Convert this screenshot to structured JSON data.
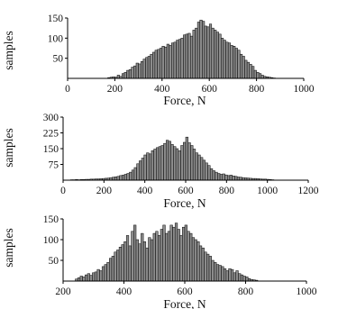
{
  "colors": {
    "bar_fill": "#8c8c8c",
    "bar_edge": "#000000",
    "axis": "#000000",
    "background": "#ffffff"
  },
  "chart_data": [
    {
      "type": "bar",
      "title": "",
      "xlabel": "Force, N",
      "ylabel": "samples",
      "xlim": [
        0,
        1000
      ],
      "ylim": [
        0,
        150
      ],
      "xticks": [
        0,
        200,
        400,
        600,
        800,
        1000
      ],
      "yticks": [
        50,
        100,
        150
      ],
      "grid": false,
      "bin_width": 10,
      "x": [
        170,
        180,
        190,
        200,
        210,
        220,
        230,
        240,
        250,
        260,
        270,
        280,
        290,
        300,
        310,
        320,
        330,
        340,
        350,
        360,
        370,
        380,
        390,
        400,
        410,
        420,
        430,
        440,
        450,
        460,
        470,
        480,
        490,
        500,
        510,
        520,
        530,
        540,
        550,
        560,
        570,
        580,
        590,
        600,
        610,
        620,
        630,
        640,
        650,
        660,
        670,
        680,
        690,
        700,
        710,
        720,
        730,
        740,
        750,
        760,
        770,
        780,
        790,
        800,
        810,
        820,
        830,
        840,
        850,
        860,
        870
      ],
      "values": [
        2,
        3,
        4,
        3,
        8,
        5,
        12,
        15,
        20,
        22,
        28,
        31,
        38,
        36,
        42,
        48,
        52,
        55,
        60,
        65,
        70,
        72,
        75,
        80,
        78,
        85,
        82,
        88,
        90,
        95,
        97,
        100,
        108,
        110,
        112,
        105,
        120,
        125,
        140,
        145,
        142,
        130,
        128,
        135,
        125,
        120,
        115,
        110,
        100,
        95,
        90,
        88,
        82,
        80,
        75,
        70,
        60,
        55,
        45,
        40,
        35,
        30,
        20,
        15,
        12,
        8,
        5,
        4,
        3,
        2,
        1
      ]
    },
    {
      "type": "bar",
      "title": "",
      "xlabel": "Force, N",
      "ylabel": "samples",
      "xlim": [
        0,
        1200
      ],
      "ylim": [
        0,
        300
      ],
      "xticks": [
        0,
        200,
        400,
        600,
        800,
        1000,
        1200
      ],
      "yticks": [
        75,
        150,
        225,
        300
      ],
      "grid": false,
      "bin_width": 12,
      "x": [
        36,
        48,
        60,
        72,
        84,
        96,
        108,
        120,
        132,
        144,
        156,
        168,
        180,
        192,
        204,
        216,
        228,
        240,
        252,
        264,
        276,
        288,
        300,
        312,
        324,
        336,
        348,
        360,
        372,
        384,
        396,
        408,
        420,
        432,
        444,
        456,
        468,
        480,
        492,
        504,
        516,
        528,
        540,
        552,
        564,
        576,
        588,
        600,
        612,
        624,
        636,
        648,
        660,
        672,
        684,
        696,
        708,
        720,
        732,
        744,
        756,
        768,
        780,
        792,
        804,
        816,
        828,
        840,
        852,
        864,
        876,
        888,
        900,
        912,
        924,
        936,
        948,
        960,
        972,
        984,
        996,
        1008,
        1020
      ],
      "values": [
        2,
        2,
        3,
        2,
        3,
        3,
        4,
        4,
        5,
        5,
        6,
        6,
        7,
        8,
        9,
        10,
        12,
        14,
        16,
        18,
        22,
        24,
        28,
        32,
        38,
        48,
        60,
        78,
        92,
        105,
        120,
        130,
        125,
        140,
        148,
        155,
        160,
        165,
        175,
        190,
        185,
        170,
        160,
        150,
        140,
        165,
        180,
        205,
        178,
        165,
        148,
        130,
        120,
        108,
        95,
        82,
        70,
        55,
        45,
        38,
        32,
        28,
        30,
        25,
        22,
        24,
        20,
        18,
        15,
        14,
        12,
        11,
        10,
        9,
        8,
        8,
        7,
        6,
        5,
        5,
        4,
        3,
        2
      ]
    },
    {
      "type": "bar",
      "title": "",
      "xlabel": "Force, N",
      "ylabel": "samples",
      "xlim": [
        200,
        1000
      ],
      "ylim": [
        0,
        150
      ],
      "xticks": [
        200,
        400,
        600,
        800,
        1000
      ],
      "yticks": [
        50,
        100,
        150
      ],
      "grid": false,
      "bin_width": 8,
      "x": [
        240,
        248,
        256,
        264,
        272,
        280,
        288,
        296,
        304,
        312,
        320,
        328,
        336,
        344,
        352,
        360,
        368,
        376,
        384,
        392,
        400,
        408,
        416,
        424,
        432,
        440,
        448,
        456,
        464,
        472,
        480,
        488,
        496,
        504,
        512,
        520,
        528,
        536,
        544,
        552,
        560,
        568,
        576,
        584,
        592,
        600,
        608,
        616,
        624,
        632,
        640,
        648,
        656,
        664,
        672,
        680,
        688,
        696,
        704,
        712,
        720,
        728,
        736,
        744,
        752,
        760,
        768,
        776,
        784,
        792,
        800,
        808,
        816,
        824,
        832
      ],
      "values": [
        5,
        8,
        12,
        10,
        15,
        18,
        14,
        20,
        22,
        28,
        25,
        35,
        40,
        45,
        55,
        60,
        70,
        75,
        82,
        88,
        95,
        110,
        85,
        120,
        135,
        100,
        90,
        115,
        95,
        80,
        105,
        100,
        115,
        120,
        110,
        125,
        135,
        115,
        120,
        135,
        130,
        140,
        125,
        110,
        130,
        135,
        120,
        115,
        105,
        100,
        95,
        85,
        80,
        70,
        65,
        60,
        50,
        45,
        40,
        38,
        35,
        30,
        25,
        30,
        28,
        20,
        25,
        18,
        15,
        12,
        10,
        6,
        4,
        3,
        2
      ]
    }
  ]
}
